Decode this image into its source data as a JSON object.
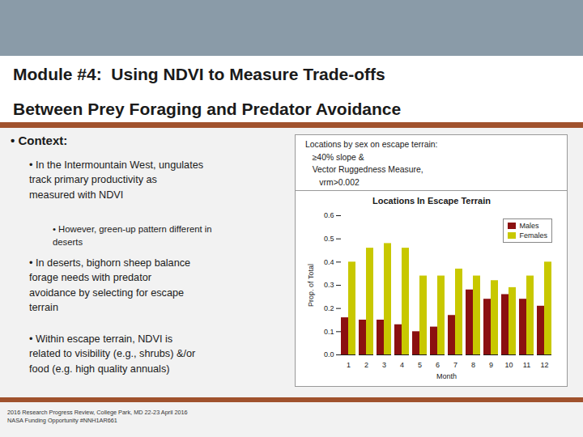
{
  "chart_data": {
    "type": "bar",
    "title": "Locations In Escape Terrain",
    "x_label": "Month",
    "y_label": "Prop. of Total",
    "categories": [
      "1",
      "2",
      "3",
      "4",
      "5",
      "6",
      "7",
      "8",
      "9",
      "10",
      "11",
      "12"
    ],
    "series": [
      {
        "name": "Males",
        "color": "#8B1010",
        "values": [
          0.16,
          0.15,
          0.15,
          0.13,
          0.1,
          0.12,
          0.17,
          0.28,
          0.24,
          0.26,
          0.24,
          0.21
        ]
      },
      {
        "name": "Females",
        "color": "#C8C800",
        "values": [
          0.4,
          0.46,
          0.48,
          0.46,
          0.34,
          0.34,
          0.37,
          0.34,
          0.32,
          0.29,
          0.34,
          0.4
        ]
      }
    ],
    "ylim": [
      0.0,
      0.6
    ],
    "yticks": [
      {
        "value": 0,
        "label": "0.0"
      },
      0.1,
      0.2,
      0.3,
      0.4,
      0.5,
      0.6
    ],
    "grid": false,
    "legend": "upper right",
    "annotations": [
      "Module #4:  Using NDVI to Measure Trade-offs",
      "Between Prey Foraging and Predator Avoidance",
      "• Context:",
      "• In the Intermountain West, ungulates\ntrack primary productivity as\nmeasured with NDVI",
      "• However, green-up pattern different in\ndeserts",
      "• In deserts, bighorn sheep balance\nforage needs with predator\navoidance by selecting for escape\nterrain",
      "• Within escape terrain, NDVI is\nrelated to visibility (e.g., shrubs) &/or\nfood (e.g. high quality annuals)",
      "Locations by sex on escape terrain:\n   ≥40% slope &\n   Vector Ruggedness Measure,\n      vrm>0.002",
      "2016 Research Progress Review, College Park, MD 22-23 April 2016",
      "NASA Funding Opportunity #NNH1AR661"
    ]
  }
}
